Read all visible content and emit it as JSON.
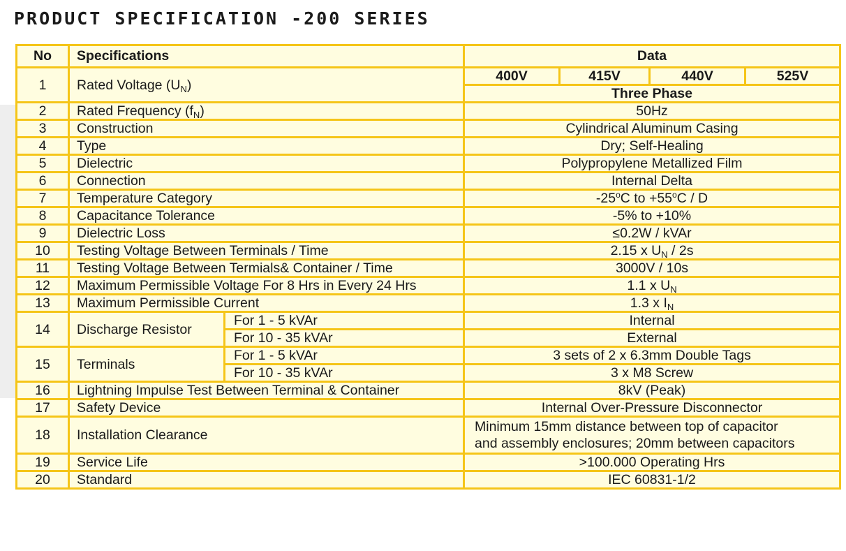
{
  "title": "PRODUCT SPECIFICATION -200 SERIES",
  "headers": {
    "no": "No",
    "spec": "Specifications",
    "data": "Data"
  },
  "voltages": [
    "400V",
    "415V",
    "440V",
    "525V"
  ],
  "phase": "Three Phase",
  "rows": {
    "r1": {
      "no": "1",
      "label": "Rated Voltage (U",
      "label_sub": "N",
      "label_end": ")"
    },
    "r2": {
      "no": "2",
      "label": "Rated Frequency (f",
      "label_sub": "N",
      "label_end": ")",
      "value": "50Hz"
    },
    "r3": {
      "no": "3",
      "label": "Construction",
      "value": "Cylindrical Aluminum Casing"
    },
    "r4": {
      "no": "4",
      "label": "Type",
      "value": "Dry; Self-Healing"
    },
    "r5": {
      "no": "5",
      "label": "Dielectric",
      "value": "Polypropylene Metallized Film"
    },
    "r6": {
      "no": "6",
      "label": "Connection",
      "value": "Internal Delta"
    },
    "r7": {
      "no": "7",
      "label": "Temperature Category",
      "v1": "-25",
      "v_deg1": "o",
      "v2": "C to +55",
      "v_deg2": "o",
      "v3": "C / D"
    },
    "r8": {
      "no": "8",
      "label": "Capacitance Tolerance",
      "value": "-5% to +10%"
    },
    "r9": {
      "no": "9",
      "label": "Dielectric Loss",
      "value": "≤0.2W / kVAr"
    },
    "r10": {
      "no": "10",
      "label": "Testing Voltage Between Terminals / Time",
      "v1": "2.15 x U",
      "v_sub": "N",
      "v2": " / 2s"
    },
    "r11": {
      "no": "11",
      "label": "Testing Voltage Between Termials& Container / Time",
      "value": "3000V / 10s"
    },
    "r12": {
      "no": "12",
      "label": "Maximum Permissible Voltage For 8 Hrs in Every 24 Hrs",
      "v1": "1.1 x U",
      "v_sub": "N"
    },
    "r13": {
      "no": "13",
      "label": "Maximum Permissible Current",
      "v1": "1.3 x I",
      "v_sub": "N"
    },
    "r14": {
      "no": "14",
      "label": "Discharge Resistor",
      "sub1": "For 1 - 5 kVAr",
      "value1": "Internal",
      "sub2": "For 10 - 35 kVAr",
      "value2": "External"
    },
    "r15": {
      "no": "15",
      "label": "Terminals",
      "sub1": "For 1 - 5 kVAr",
      "value1": "3 sets of 2 x 6.3mm Double Tags",
      "sub2": "For 10 - 35 kVAr",
      "value2": "3 x M8 Screw"
    },
    "r16": {
      "no": "16",
      "label": "Lightning Impulse Test Between Terminal & Container",
      "value": "8kV (Peak)"
    },
    "r17": {
      "no": "17",
      "label": "Safety Device",
      "value": "Internal Over-Pressure Disconnector"
    },
    "r18": {
      "no": "18",
      "label": "Installation Clearance",
      "value_line1": "Minimum 15mm distance between top of capacitor",
      "value_line2": "and assembly enclosures; 20mm between capacitors"
    },
    "r19": {
      "no": "19",
      "label": "Service Life",
      "value": ">100.000 Operating Hrs"
    },
    "r20": {
      "no": "20",
      "label": "Standard",
      "value": "IEC 60831-1/2"
    }
  }
}
